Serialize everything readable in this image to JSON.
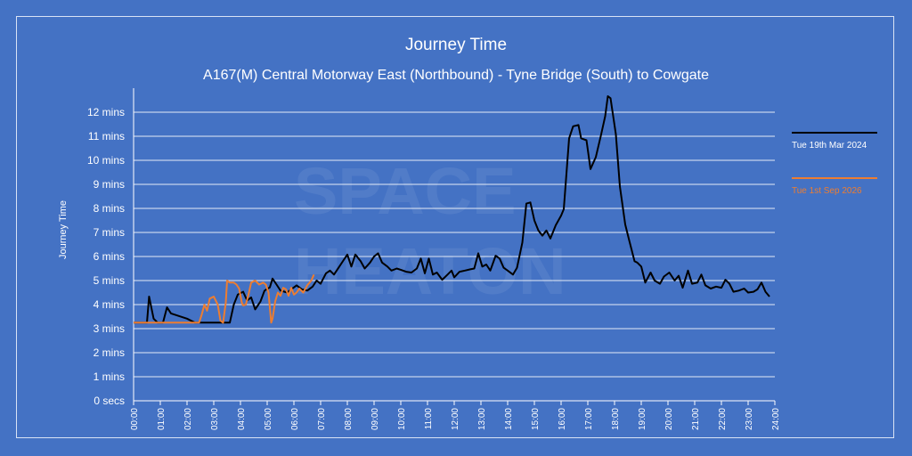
{
  "chart_data": {
    "type": "line",
    "title": "Journey Time",
    "subtitle": "A167(M) Central Motorway East (Northbound) - Tyne Bridge (South) to Cowgate",
    "ylabel": "Journey Time",
    "ylim": [
      0,
      780
    ],
    "xlim": [
      0,
      24
    ],
    "y_ticks": [
      {
        "v": 0,
        "label": "0 secs"
      },
      {
        "v": 60,
        "label": "1 mins"
      },
      {
        "v": 120,
        "label": "2 mins"
      },
      {
        "v": 180,
        "label": "3 mins"
      },
      {
        "v": 240,
        "label": "4 mins"
      },
      {
        "v": 300,
        "label": "5 mins"
      },
      {
        "v": 360,
        "label": "6 mins"
      },
      {
        "v": 420,
        "label": "7 mins"
      },
      {
        "v": 480,
        "label": "8 mins"
      },
      {
        "v": 540,
        "label": "9 mins"
      },
      {
        "v": 600,
        "label": "10 mins"
      },
      {
        "v": 660,
        "label": "11 mins"
      },
      {
        "v": 720,
        "label": "12 mins"
      }
    ],
    "x_ticks": [
      "00:00",
      "01:00",
      "02:00",
      "03:00",
      "04:00",
      "05:00",
      "06:00",
      "07:00",
      "08:00",
      "09:00",
      "10:00",
      "11:00",
      "12:00",
      "13:00",
      "14:00",
      "15:00",
      "16:00",
      "17:00",
      "18:00",
      "19:00",
      "20:00",
      "21:00",
      "22:00",
      "23:00",
      "24:00"
    ],
    "grid": true,
    "legend_position": "right",
    "series": [
      {
        "name": "Tue 19th Mar 2024",
        "color": "#000000",
        "points": [
          [
            0,
            195
          ],
          [
            0.5,
            195
          ],
          [
            0.58,
            260
          ],
          [
            0.75,
            205
          ],
          [
            0.9,
            195
          ],
          [
            1.1,
            195
          ],
          [
            1.25,
            233
          ],
          [
            1.4,
            218
          ],
          [
            2.0,
            205
          ],
          [
            2.3,
            195
          ],
          [
            3.6,
            195
          ],
          [
            3.75,
            240
          ],
          [
            3.9,
            265
          ],
          [
            4.1,
            272
          ],
          [
            4.25,
            250
          ],
          [
            4.4,
            258
          ],
          [
            4.55,
            228
          ],
          [
            4.75,
            248
          ],
          [
            4.9,
            275
          ],
          [
            5.1,
            283
          ],
          [
            5.2,
            305
          ],
          [
            5.35,
            290
          ],
          [
            5.5,
            275
          ],
          [
            5.75,
            270
          ],
          [
            5.9,
            278
          ],
          [
            6.1,
            288
          ],
          [
            6.3,
            278
          ],
          [
            6.5,
            275
          ],
          [
            6.7,
            285
          ],
          [
            6.85,
            300
          ],
          [
            7.0,
            292
          ],
          [
            7.2,
            318
          ],
          [
            7.35,
            325
          ],
          [
            7.5,
            315
          ],
          [
            7.7,
            335
          ],
          [
            7.85,
            350
          ],
          [
            8.0,
            365
          ],
          [
            8.15,
            335
          ],
          [
            8.3,
            365
          ],
          [
            8.5,
            348
          ],
          [
            8.65,
            330
          ],
          [
            8.85,
            345
          ],
          [
            9.0,
            360
          ],
          [
            9.15,
            368
          ],
          [
            9.3,
            345
          ],
          [
            9.5,
            335
          ],
          [
            9.65,
            325
          ],
          [
            9.85,
            330
          ],
          [
            10.0,
            327
          ],
          [
            10.2,
            322
          ],
          [
            10.4,
            320
          ],
          [
            10.6,
            330
          ],
          [
            10.75,
            355
          ],
          [
            10.9,
            318
          ],
          [
            11.05,
            355
          ],
          [
            11.2,
            315
          ],
          [
            11.35,
            320
          ],
          [
            11.55,
            302
          ],
          [
            11.75,
            315
          ],
          [
            11.9,
            325
          ],
          [
            12.0,
            308
          ],
          [
            12.2,
            322
          ],
          [
            12.4,
            325
          ],
          [
            12.6,
            328
          ],
          [
            12.75,
            330
          ],
          [
            12.9,
            368
          ],
          [
            13.05,
            335
          ],
          [
            13.2,
            340
          ],
          [
            13.35,
            325
          ],
          [
            13.55,
            362
          ],
          [
            13.7,
            355
          ],
          [
            13.85,
            332
          ],
          [
            14.0,
            325
          ],
          [
            14.2,
            315
          ],
          [
            14.35,
            332
          ],
          [
            14.55,
            395
          ],
          [
            14.7,
            492
          ],
          [
            14.85,
            495
          ],
          [
            15.0,
            450
          ],
          [
            15.15,
            425
          ],
          [
            15.3,
            412
          ],
          [
            15.45,
            425
          ],
          [
            15.6,
            405
          ],
          [
            15.8,
            438
          ],
          [
            16.0,
            462
          ],
          [
            16.1,
            478
          ],
          [
            16.3,
            655
          ],
          [
            16.45,
            685
          ],
          [
            16.65,
            688
          ],
          [
            16.75,
            655
          ],
          [
            16.95,
            650
          ],
          [
            17.1,
            578
          ],
          [
            17.3,
            608
          ],
          [
            17.5,
            665
          ],
          [
            17.65,
            710
          ],
          [
            17.75,
            760
          ],
          [
            17.85,
            755
          ],
          [
            18.05,
            665
          ],
          [
            18.2,
            535
          ],
          [
            18.4,
            440
          ],
          [
            18.55,
            400
          ],
          [
            18.75,
            348
          ],
          [
            18.85,
            345
          ],
          [
            19.0,
            335
          ],
          [
            19.15,
            295
          ],
          [
            19.35,
            320
          ],
          [
            19.5,
            300
          ],
          [
            19.7,
            292
          ],
          [
            19.85,
            310
          ],
          [
            20.05,
            320
          ],
          [
            20.25,
            300
          ],
          [
            20.4,
            312
          ],
          [
            20.55,
            282
          ],
          [
            20.75,
            325
          ],
          [
            20.9,
            292
          ],
          [
            21.1,
            295
          ],
          [
            21.25,
            315
          ],
          [
            21.4,
            288
          ],
          [
            21.6,
            280
          ],
          [
            21.8,
            285
          ],
          [
            22.0,
            282
          ],
          [
            22.15,
            302
          ],
          [
            22.3,
            292
          ],
          [
            22.45,
            272
          ],
          [
            22.65,
            275
          ],
          [
            22.85,
            280
          ],
          [
            23.0,
            270
          ],
          [
            23.2,
            272
          ],
          [
            23.35,
            278
          ],
          [
            23.5,
            295
          ],
          [
            23.65,
            272
          ],
          [
            23.8,
            260
          ]
        ]
      },
      {
        "name": "Tue 1st Sep 2026",
        "color": "#ed7d31",
        "points": [
          [
            0,
            195
          ],
          [
            1.5,
            195
          ],
          [
            2.45,
            195
          ],
          [
            2.55,
            215
          ],
          [
            2.65,
            240
          ],
          [
            2.75,
            225
          ],
          [
            2.85,
            255
          ],
          [
            3.0,
            260
          ],
          [
            3.15,
            240
          ],
          [
            3.25,
            200
          ],
          [
            3.35,
            195
          ],
          [
            3.45,
            245
          ],
          [
            3.5,
            300
          ],
          [
            3.6,
            295
          ],
          [
            3.75,
            295
          ],
          [
            3.85,
            290
          ],
          [
            3.95,
            280
          ],
          [
            4.05,
            245
          ],
          [
            4.1,
            238
          ],
          [
            4.2,
            240
          ],
          [
            4.3,
            265
          ],
          [
            4.4,
            295
          ],
          [
            4.55,
            300
          ],
          [
            4.7,
            290
          ],
          [
            4.85,
            295
          ],
          [
            4.95,
            290
          ],
          [
            5.05,
            270
          ],
          [
            5.15,
            195
          ],
          [
            5.2,
            205
          ],
          [
            5.3,
            248
          ],
          [
            5.4,
            270
          ],
          [
            5.5,
            262
          ],
          [
            5.6,
            282
          ],
          [
            5.7,
            278
          ],
          [
            5.8,
            262
          ],
          [
            5.9,
            282
          ],
          [
            6.0,
            265
          ],
          [
            6.1,
            270
          ],
          [
            6.2,
            280
          ],
          [
            6.35,
            270
          ],
          [
            6.5,
            288
          ],
          [
            6.65,
            300
          ],
          [
            6.75,
            315
          ]
        ]
      }
    ]
  }
}
